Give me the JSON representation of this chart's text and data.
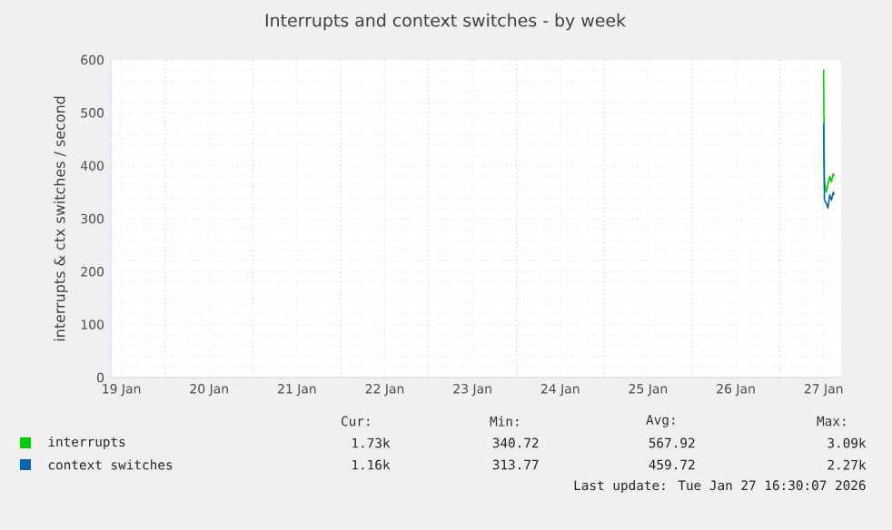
{
  "chart_data": {
    "type": "line",
    "title": "Interrupts and context switches - by week",
    "ylabel": "interrupts & ctx switches / second",
    "xlim": [
      "2026-01-19T09:07",
      "2026-01-27T16:48"
    ],
    "ylim": [
      0,
      600
    ],
    "yticks": [
      0,
      100,
      200,
      300,
      400,
      500,
      600
    ],
    "xticks": [
      {
        "value": "2026-01-19T12:00",
        "label": "19 Jan"
      },
      {
        "value": "2026-01-20T12:00",
        "label": "20 Jan"
      },
      {
        "value": "2026-01-21T12:00",
        "label": "21 Jan"
      },
      {
        "value": "2026-01-22T12:00",
        "label": "22 Jan"
      },
      {
        "value": "2026-01-23T12:00",
        "label": "23 Jan"
      },
      {
        "value": "2026-01-24T12:00",
        "label": "24 Jan"
      },
      {
        "value": "2026-01-25T12:00",
        "label": "25 Jan"
      },
      {
        "value": "2026-01-26T12:00",
        "label": "26 Jan"
      },
      {
        "value": "2026-01-27T12:00",
        "label": "27 Jan"
      },
      {
        "value": "2026-01-20",
        "label": null
      },
      {
        "value": "2026-01-21",
        "label": null
      },
      {
        "value": "2026-01-22",
        "label": null
      },
      {
        "value": "2026-01-23",
        "label": null
      },
      {
        "value": "2026-01-24",
        "label": null
      },
      {
        "value": "2026-01-25",
        "label": null
      },
      {
        "value": "2026-01-26",
        "label": null
      },
      {
        "value": "2026-01-27",
        "label": null
      }
    ],
    "grid": true,
    "legend": "bottom",
    "marker": "none",
    "line_style": "solid",
    "series": [
      {
        "name": "interrupts",
        "color": "#00cc00",
        "x": [
          "2026-01-27T12:00",
          "2026-01-27T12:07",
          "2026-01-27T12:14",
          "2026-01-27T12:43",
          "2026-01-27T13:12",
          "2026-01-27T13:41",
          "2026-01-27T14:10",
          "2026-01-27T14:38",
          "2026-01-27T14:53"
        ],
        "values": [
          582,
          470,
          370,
          350,
          365,
          380,
          370,
          385,
          380
        ]
      },
      {
        "name": "context switches",
        "color": "#0066b3",
        "x": [
          "2026-01-27T12:00",
          "2026-01-27T12:07",
          "2026-01-27T12:14",
          "2026-01-27T12:43",
          "2026-01-27T13:12",
          "2026-01-27T13:41",
          "2026-01-27T14:10",
          "2026-01-27T14:38",
          "2026-01-27T14:53"
        ],
        "values": [
          479,
          400,
          335,
          330,
          320,
          345,
          335,
          350,
          345
        ]
      }
    ],
    "annotations": [
      "Cur:",
      "Min:",
      "Avg:",
      "Max:",
      "1.73k",
      "340.72",
      "567.92",
      "3.09k",
      "1.16k",
      "313.77",
      "459.72",
      "2.27k",
      "Last update: Tue Jan 27 16:30:07 2026"
    ]
  }
}
